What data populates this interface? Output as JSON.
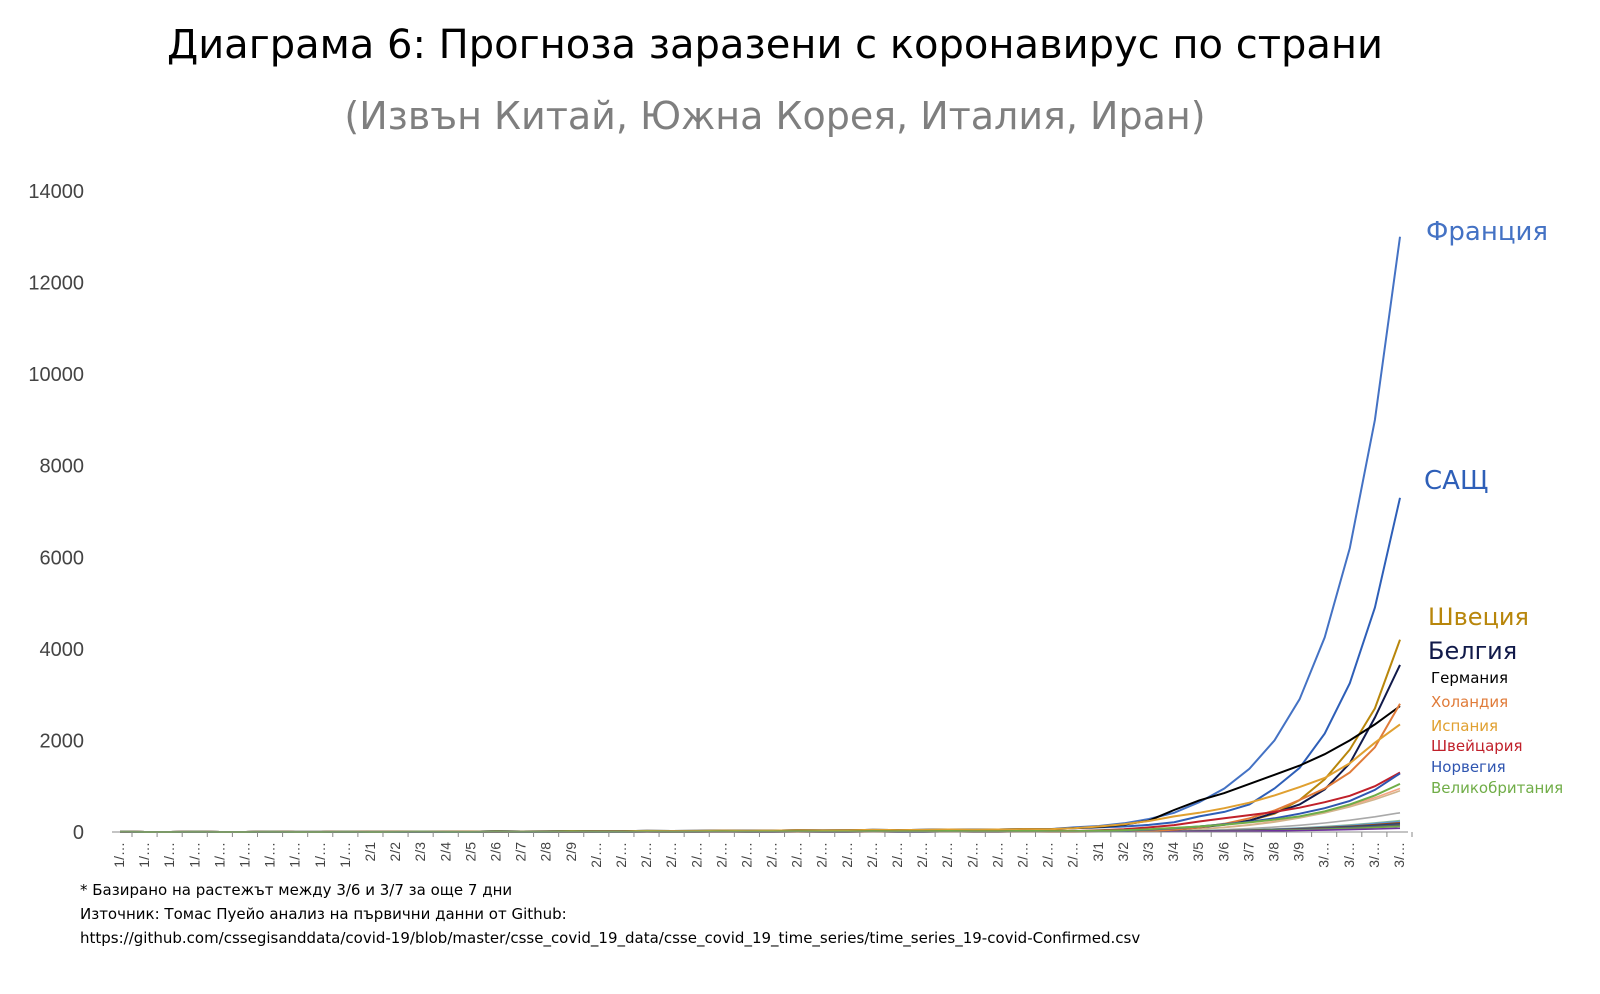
{
  "chart_data": {
    "type": "line",
    "title": "Диаграма 6: Прогноза заразени с коронавирус по страни",
    "subtitle": "(Извън Китай, Южна Корея, Италия, Иран)",
    "ylim": [
      0,
      14000
    ],
    "y_ticks": [
      0,
      2000,
      4000,
      6000,
      8000,
      10000,
      12000,
      14000
    ],
    "grid": false,
    "legend": "direct labels at right end of lines",
    "x_tick_labels": [
      "1/…",
      "1/…",
      "1/…",
      "1/…",
      "1/…",
      "1/…",
      "1/…",
      "1/…",
      "1/…",
      "1/…",
      "2/1",
      "2/2",
      "2/3",
      "2/4",
      "2/5",
      "2/6",
      "2/7",
      "2/8",
      "2/9",
      "2/…",
      "2/…",
      "2/…",
      "2/…",
      "2/…",
      "2/…",
      "2/…",
      "2/…",
      "2/…",
      "2/…",
      "2/…",
      "2/…",
      "2/…",
      "2/…",
      "2/…",
      "2/…",
      "2/…",
      "2/…",
      "2/…",
      "2/…",
      "3/1",
      "3/2",
      "3/3",
      "3/4",
      "3/5",
      "3/6",
      "3/7",
      "3/8",
      "3/9",
      "3/…",
      "3/…",
      "3/…",
      "3/…"
    ],
    "series": [
      {
        "name": "Франция",
        "color": "#4472c4",
        "label_size": 26,
        "tail": [
          100,
          130,
          190,
          285,
          420,
          650,
          950,
          1380,
          2000,
          2900,
          4250,
          6200,
          9000,
          13000
        ]
      },
      {
        "name": "САЩ",
        "color": "#2e5fb8",
        "label_size": 26,
        "tail": [
          80,
          100,
          120,
          155,
          215,
          340,
          440,
          600,
          950,
          1400,
          2150,
          3250,
          4900,
          7300
        ]
      },
      {
        "name": "Швеция",
        "color": "#b8860b",
        "label_size": 24,
        "tail": [
          20,
          25,
          30,
          40,
          60,
          120,
          170,
          250,
          400,
          700,
          1150,
          1800,
          2700,
          4200
        ]
      },
      {
        "name": "Белгия",
        "color": "#111a4a",
        "label_size": 24,
        "tail": [
          10,
          12,
          15,
          25,
          45,
          100,
          160,
          250,
          420,
          600,
          930,
          1500,
          2500,
          3650
        ]
      },
      {
        "name": "Германия",
        "color": "#000000",
        "label_size": 15,
        "tail": [
          80,
          110,
          160,
          250,
          480,
          690,
          850,
          1050,
          1250,
          1450,
          1700,
          2000,
          2350,
          2750
        ]
      },
      {
        "name": "Холандия",
        "color": "#e07b39",
        "label_size": 15,
        "tail": [
          5,
          10,
          15,
          25,
          50,
          100,
          180,
          300,
          470,
          700,
          950,
          1300,
          1850,
          2800
        ]
      },
      {
        "name": "Испания",
        "color": "#e0a030",
        "label_size": 15,
        "tail": [
          80,
          120,
          170,
          240,
          340,
          420,
          520,
          640,
          800,
          980,
          1180,
          1500,
          1950,
          2350
        ]
      },
      {
        "name": "Швейцария",
        "color": "#c0202a",
        "label_size": 15,
        "tail": [
          20,
          40,
          60,
          100,
          150,
          230,
          300,
          370,
          440,
          530,
          650,
          790,
          1000,
          1300
        ]
      },
      {
        "name": "Норвегия",
        "color": "#2f55b0",
        "label_size": 15,
        "tail": [
          10,
          20,
          30,
          50,
          80,
          120,
          170,
          220,
          300,
          400,
          520,
          680,
          920,
          1280
        ]
      },
      {
        "name": "Великобритания",
        "color": "#70ad47",
        "label_size": 15,
        "tail": [
          20,
          30,
          40,
          60,
          90,
          120,
          160,
          210,
          270,
          340,
          450,
          600,
          800,
          1050
        ]
      }
    ],
    "minor_series_colors": [
      "#f4a582",
      "#d2b48c",
      "#a9a9a9",
      "#8fbc8f",
      "#5b9bd5",
      "#9e480e",
      "#264478",
      "#636363",
      "#70ad47",
      "#7030a0"
    ],
    "minor_series_peaks": [
      950,
      900,
      420,
      250,
      230,
      200,
      180,
      150,
      120,
      80
    ]
  },
  "footnote": {
    "line1": "* Базирано на растежът между 3/6 и 3/7 за още 7 дни",
    "line2": "Източник: Томас Пуейо анализ на първични данни от Github:",
    "line3": "https://github.com/cssegisanddata/covid-19/blob/master/csse_covid_19_data/csse_covid_19_time_series/time_series_19-covid-Confirmed.csv"
  }
}
